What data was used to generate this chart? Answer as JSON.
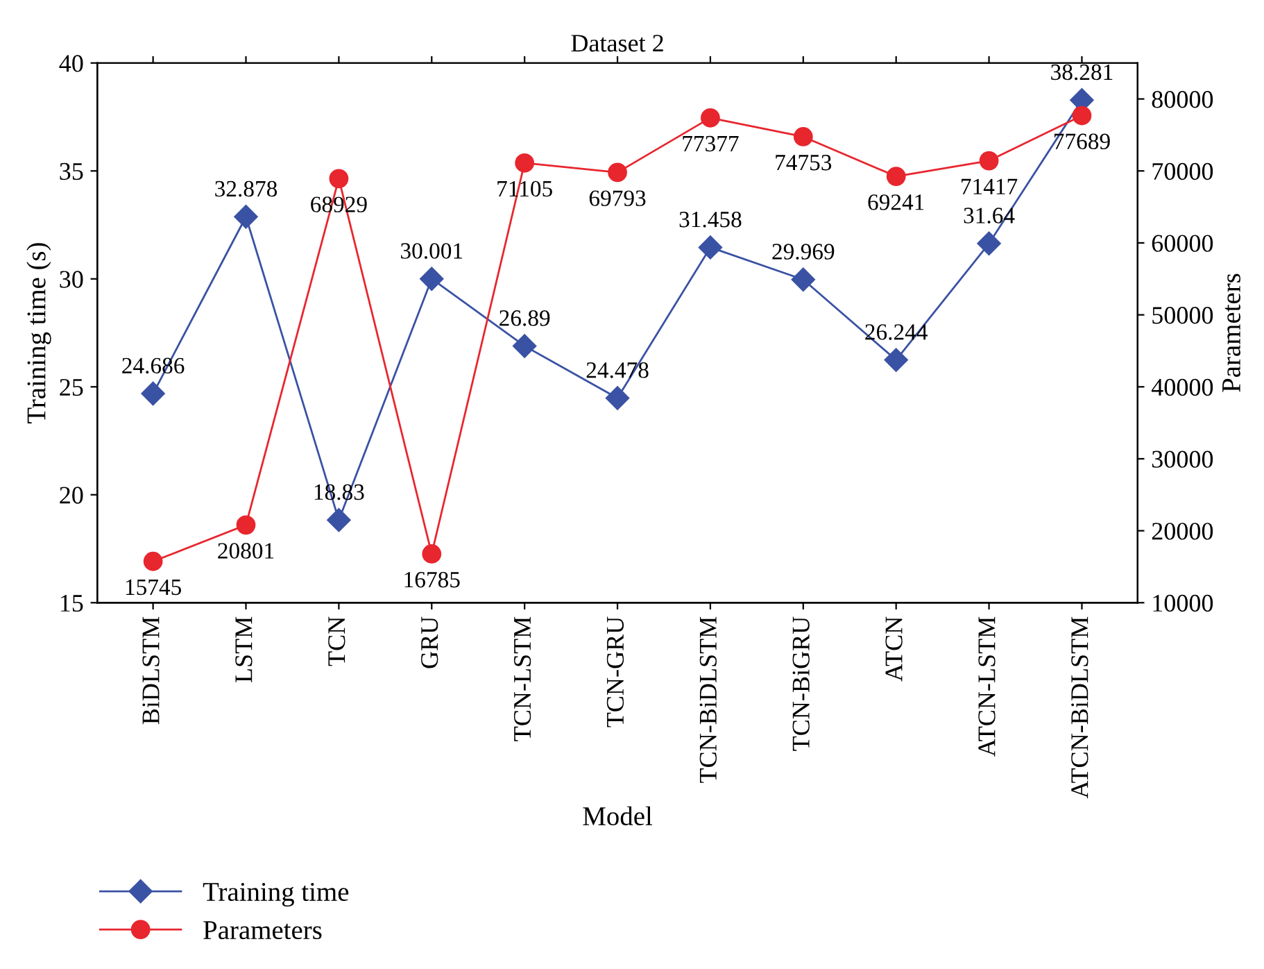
{
  "chart_data": {
    "type": "line",
    "title": "Dataset 2",
    "xlabel": "Model",
    "ylabel": "Training time (s)",
    "y2label": "Parameters",
    "categories": [
      "BiDLSTM",
      "LSTM",
      "TCN",
      "GRU",
      "TCN-LSTM",
      "TCN-GRU",
      "TCN-BiDLSTM",
      "TCN-BiGRU",
      "ATCN",
      "ATCN-LSTM",
      "ATCN-BiDLSTM"
    ],
    "series": [
      {
        "name": "Training time",
        "color": "#3a52a4",
        "marker": "diamond",
        "values": [
          24.686,
          32.878,
          18.83,
          30.001,
          26.89,
          24.478,
          31.458,
          29.969,
          26.244,
          31.64,
          38.281
        ]
      },
      {
        "name": "Parameters",
        "color": "#e8262e",
        "marker": "circle",
        "axis": "y2",
        "values": [
          15745,
          20801,
          68929,
          16785,
          71105,
          69793,
          77377,
          74753,
          69241,
          71417,
          77689
        ]
      }
    ],
    "ylim": [
      15,
      40
    ],
    "yticks": [
      15,
      20,
      25,
      30,
      35,
      40
    ],
    "y2lim": [
      10000,
      85000
    ],
    "y2ticks": [
      10000,
      20000,
      30000,
      40000,
      50000,
      60000,
      70000,
      80000
    ],
    "data_labels": true,
    "grid": false,
    "legend": "bottom left",
    "line_style": "solid"
  }
}
